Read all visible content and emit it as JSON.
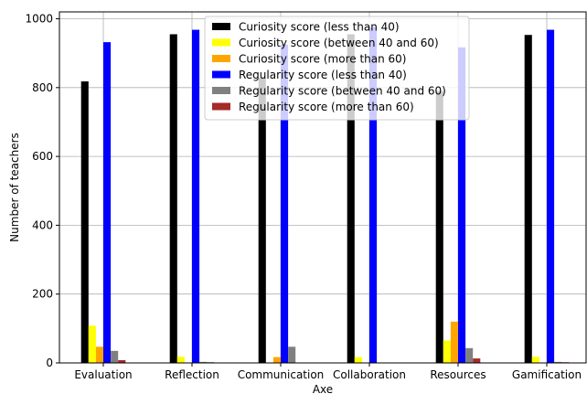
{
  "chart_data": {
    "type": "bar",
    "xlabel": "Axe",
    "ylabel": "Number of teachers",
    "ylim": [
      0,
      1020
    ],
    "yticks": [
      0,
      200,
      400,
      600,
      800,
      1000
    ],
    "grid": true,
    "legend_position": "top-center",
    "categories": [
      "Evaluation",
      "Reflection",
      "Communication",
      "Collaboration",
      "Resources",
      "Gamification"
    ],
    "series": [
      {
        "name": "Curiosity score (less than 40)",
        "color": "#000000",
        "values": [
          818,
          955,
          828,
          955,
          790,
          953
        ]
      },
      {
        "name": "Curiosity score (between 40 and 60)",
        "color": "#ffff00",
        "values": [
          108,
          18,
          0,
          17,
          65,
          18
        ]
      },
      {
        "name": "Curiosity score (more than 60)",
        "color": "#ffa500",
        "values": [
          47,
          0,
          17,
          0,
          120,
          0
        ]
      },
      {
        "name": "Regularity score (less than 40)",
        "color": "#0000ff",
        "values": [
          932,
          968,
          925,
          975,
          917,
          968
        ]
      },
      {
        "name": "Regularity score (between 40 and 60)",
        "color": "#808080",
        "values": [
          35,
          3,
          47,
          0,
          43,
          3
        ]
      },
      {
        "name": "Regularity score (more than 60)",
        "color": "#a52a2a",
        "values": [
          8,
          2,
          0,
          0,
          13,
          2
        ]
      }
    ]
  }
}
